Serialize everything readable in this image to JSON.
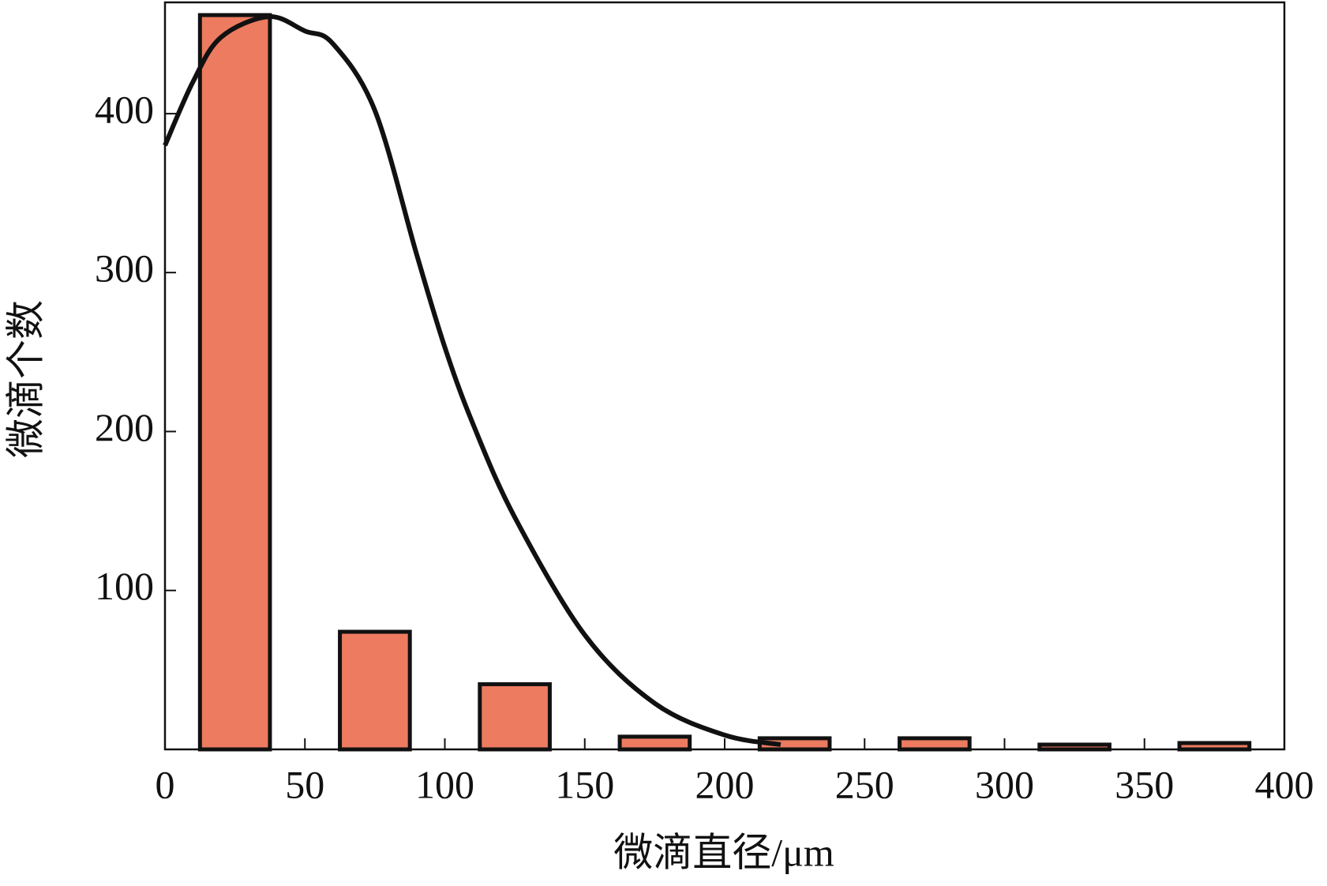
{
  "chart_data": {
    "type": "bar",
    "x_label": "微滴直径/μm",
    "y_label": "微滴个数",
    "xlim": [
      0,
      400
    ],
    "ylim": [
      0,
      470
    ],
    "xticks": [
      0,
      50,
      100,
      150,
      200,
      250,
      300,
      350,
      400
    ],
    "yticks": [
      100,
      200,
      300,
      400
    ],
    "series": [
      {
        "type": "bar",
        "color": "#ec7b60",
        "x": [
          25,
          75,
          125,
          175,
          225,
          275,
          325,
          375
        ],
        "values": [
          462,
          74,
          41,
          8,
          7,
          7,
          3,
          4
        ]
      },
      {
        "type": "line",
        "color": "#111111",
        "x": [
          0,
          10,
          20,
          37,
          50,
          60,
          75,
          90,
          100,
          110,
          125,
          150,
          175,
          200,
          220
        ],
        "values": [
          380,
          420,
          448,
          461,
          452,
          444,
          402,
          311,
          253,
          205,
          146,
          72,
          29,
          9,
          3
        ]
      }
    ]
  }
}
